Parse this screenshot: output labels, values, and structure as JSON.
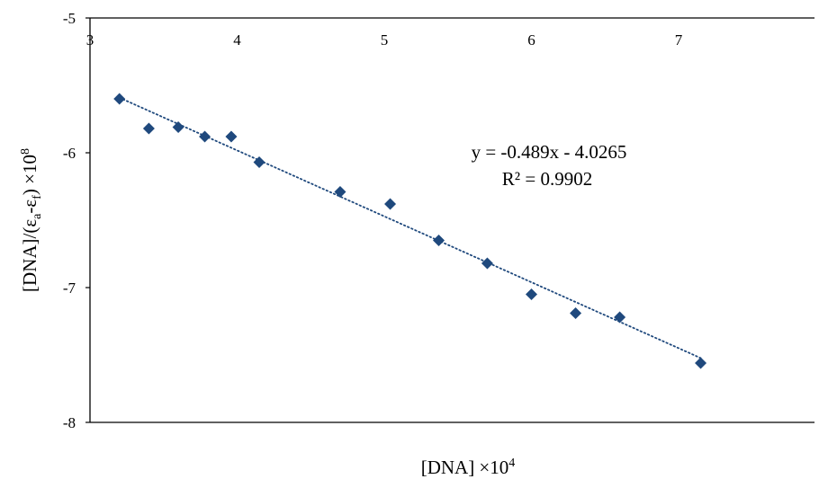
{
  "chart_data": {
    "type": "scatter",
    "title": "",
    "xlabel": {
      "main": "[DNA] ×10",
      "sup": "4"
    },
    "ylabel": {
      "p1": "[DNA]/(ε",
      "sub1": "a",
      "p2": "-ε",
      "sub2": "f",
      "p3": ") ×10",
      "sup": "8"
    },
    "xlim": [
      3,
      7.7
    ],
    "ylim": [
      -8,
      -5
    ],
    "x_ticks": [
      3,
      4,
      5,
      6,
      7
    ],
    "y_ticks": [
      -5,
      -6,
      -7,
      -8
    ],
    "grid": false,
    "series": [
      {
        "points": [
          {
            "x": 3.2,
            "y": -5.6
          },
          {
            "x": 3.4,
            "y": -5.82
          },
          {
            "x": 3.6,
            "y": -5.81
          },
          {
            "x": 3.78,
            "y": -5.88
          },
          {
            "x": 3.96,
            "y": -5.88
          },
          {
            "x": 4.15,
            "y": -6.07
          },
          {
            "x": 4.7,
            "y": -6.29
          },
          {
            "x": 5.04,
            "y": -6.38
          },
          {
            "x": 5.37,
            "y": -6.65
          },
          {
            "x": 5.7,
            "y": -6.82
          },
          {
            "x": 6.0,
            "y": -7.05
          },
          {
            "x": 6.3,
            "y": -7.19
          },
          {
            "x": 6.6,
            "y": -7.22
          },
          {
            "x": 7.15,
            "y": -7.56
          }
        ],
        "color": "#1f497d",
        "marker": "diamond"
      }
    ],
    "trendline": {
      "type": "linear",
      "slope": -0.489,
      "intercept": -4.0265,
      "x_range": [
        3.2,
        7.15
      ],
      "color": "#1f497d",
      "style": "dotted",
      "equation": "y = -0.489x - 4.0265",
      "r_squared": "R² = 0.9902"
    }
  }
}
